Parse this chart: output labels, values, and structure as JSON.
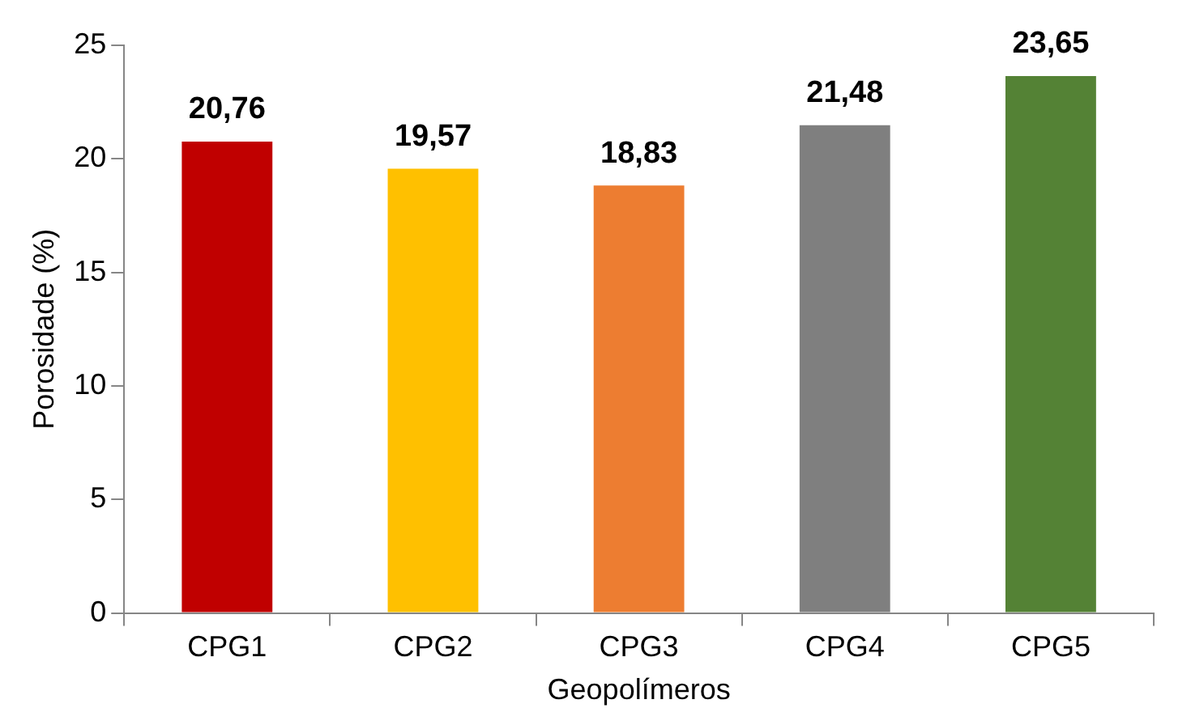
{
  "chart_data": {
    "type": "bar",
    "xlabel": "Geopolímeros",
    "ylabel": "Porosidade (%)",
    "categories": [
      "CPG1",
      "CPG2",
      "CPG3",
      "CPG4",
      "CPG5"
    ],
    "values": [
      20.76,
      19.57,
      18.83,
      21.48,
      23.65
    ],
    "colors": [
      "#c00000",
      "#ffc000",
      "#ed7d31",
      "#7f7f7f",
      "#548235"
    ],
    "value_labels": [
      "20,76",
      "19,57",
      "18,83",
      "21,48",
      "23,65"
    ],
    "ylim": [
      0,
      25
    ],
    "yticks": [
      0,
      5,
      10,
      15,
      20,
      25
    ],
    "grid": false,
    "legend": false
  }
}
